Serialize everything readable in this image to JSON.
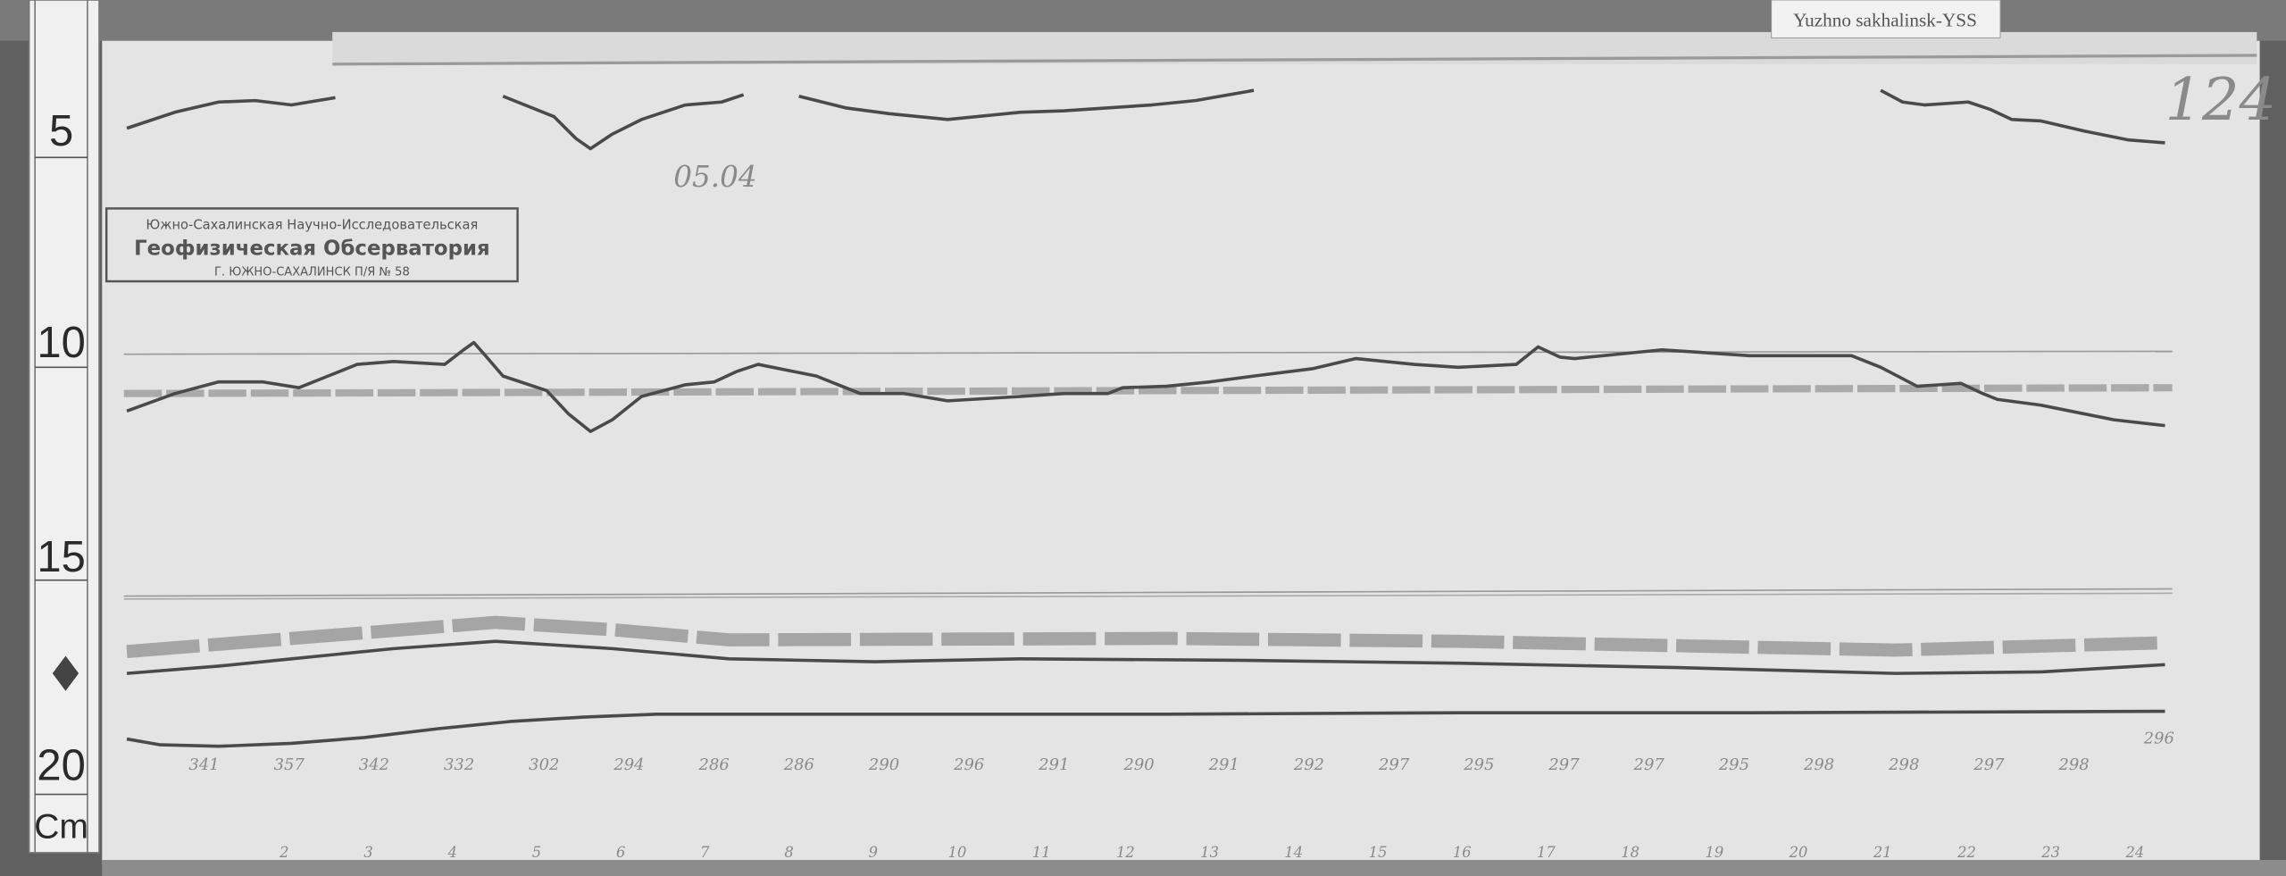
{
  "label_tag": "Yuzhno sakhalinsk-YSS",
  "sheet_number": "124",
  "date_note": "05.04",
  "stamp": {
    "line1": "Южно-Сахалинская Научно-Исследовательская",
    "line2": "Геофизическая Обсерватория",
    "line3": "Г. ЮЖНО-САХАЛИНСК П/Я № 58"
  },
  "ruler": {
    "marks": [
      "5",
      "10",
      "15",
      "20"
    ],
    "unit": "Cm"
  },
  "hour_labels": [
    "2",
    "3",
    "4",
    "5",
    "6",
    "7",
    "8",
    "9",
    "10",
    "11",
    "12",
    "13",
    "14",
    "15",
    "16",
    "17",
    "18",
    "19",
    "20",
    "21",
    "22",
    "23",
    "24"
  ],
  "bottom_readings": [
    "341",
    "357",
    "342",
    "332",
    "302",
    "294",
    "286",
    "286",
    "290",
    "296",
    "291",
    "290",
    "291",
    "292",
    "297",
    "295",
    "297",
    "297",
    "295",
    "298",
    "298",
    "297",
    "298",
    "296"
  ],
  "colors": {
    "wood": "#5e5e5e",
    "paper": "#e6e6e6",
    "trace": "#4a4a4a"
  }
}
